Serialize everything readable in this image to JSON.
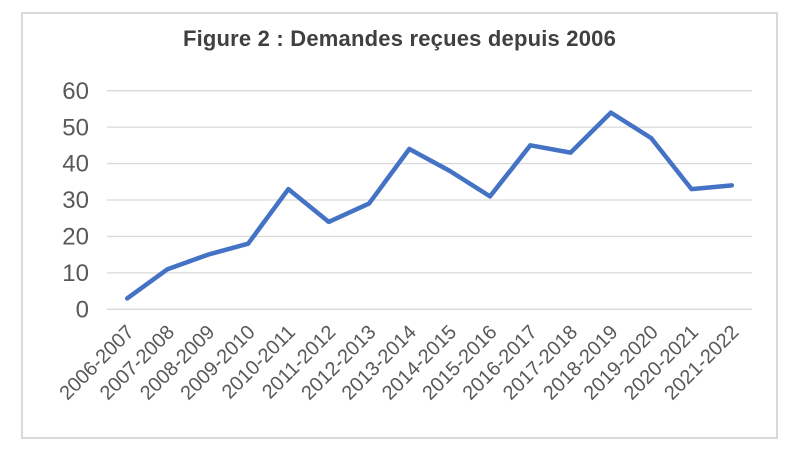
{
  "chart_data": {
    "type": "line",
    "title": "Figure 2 : Demandes reçues depuis 2006",
    "categories": [
      "2006-2007",
      "2007-2008",
      "2008-2009",
      "2009-2010",
      "2010-2011",
      "2011-2012",
      "2012-2013",
      "2013-2014",
      "2014-2015",
      "2015-2016",
      "2016-2017",
      "2017-2018",
      "2018-2019",
      "2019-2020",
      "2020-2021",
      "2021-2022"
    ],
    "values": [
      3,
      11,
      15,
      18,
      33,
      24,
      29,
      44,
      38,
      31,
      45,
      43,
      54,
      47,
      33,
      34
    ],
    "xlabel": "",
    "ylabel": "",
    "ylim": [
      0,
      60
    ],
    "yticks": [
      0,
      10,
      20,
      30,
      40,
      50,
      60
    ],
    "grid": "horizontal",
    "legend": "none",
    "x_label_rotation_deg": 45,
    "line_color": "#4472C4",
    "gridline_color": "#D9D9D9",
    "frame_border_color": "#D9D9D9",
    "title_color": "#404040",
    "axis_label_color": "#595959"
  }
}
